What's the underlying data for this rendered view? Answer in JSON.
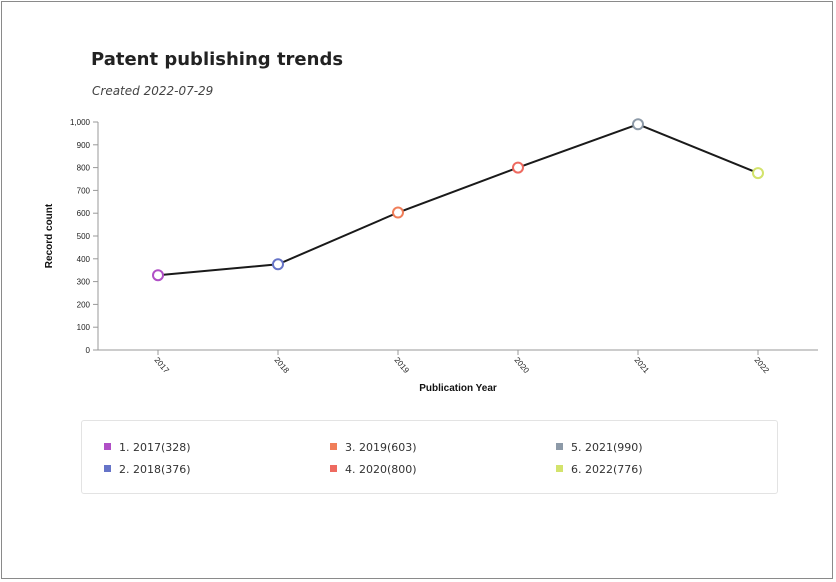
{
  "header": {
    "title": "Patent publishing trends",
    "subtitle": "Created 2022-07-29"
  },
  "colors": {
    "line": "#1a1a1a",
    "axis": "#999999",
    "point_2017": "#b04fc6",
    "point_2018": "#6674c8",
    "point_2019": "#f07e59",
    "point_2020": "#ee6a60",
    "point_2021": "#8d9aa8",
    "point_2022": "#d3e36c"
  },
  "chart_data": {
    "type": "line",
    "title": "Patent publishing trends",
    "subtitle": "Created 2022-07-29",
    "xlabel": "Publication Year",
    "ylabel": "Record count",
    "categories": [
      "2017",
      "2018",
      "2019",
      "2020",
      "2021",
      "2022"
    ],
    "values": [
      328,
      376,
      603,
      800,
      990,
      776
    ],
    "ylim": [
      0,
      1000
    ],
    "yticks": [
      "0",
      "100",
      "200",
      "300",
      "400",
      "500",
      "600",
      "700",
      "800",
      "900",
      "1,000"
    ],
    "grid": false,
    "legend_position": "bottom",
    "legend": [
      {
        "label": "1. 2017(328)",
        "color": "#b04fc6"
      },
      {
        "label": "2. 2018(376)",
        "color": "#6674c8"
      },
      {
        "label": "3. 2019(603)",
        "color": "#f07e59"
      },
      {
        "label": "4. 2020(800)",
        "color": "#ee6a60"
      },
      {
        "label": "5. 2021(990)",
        "color": "#8d9aa8"
      },
      {
        "label": "6. 2022(776)",
        "color": "#d3e36c"
      }
    ]
  }
}
